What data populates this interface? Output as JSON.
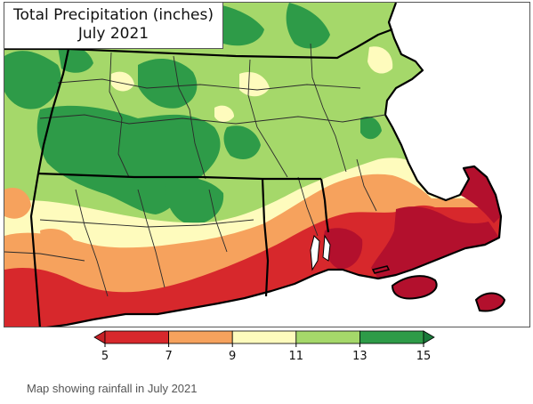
{
  "title": {
    "line1": "Total Precipitation (inches)",
    "line2": "July 2021"
  },
  "legend": {
    "ticks": [
      "5",
      "7",
      "9",
      "11",
      "13",
      "15"
    ],
    "bins": [
      {
        "from": 5,
        "to": 7,
        "color": "#d7282c"
      },
      {
        "from": 7,
        "to": 9,
        "color": "#f6a25d"
      },
      {
        "from": 9,
        "to": 11,
        "color": "#fefbbd"
      },
      {
        "from": 11,
        "to": 13,
        "color": "#a5d86a"
      },
      {
        "from": 13,
        "to": 15,
        "color": "#2e9b48"
      }
    ],
    "low_arrow_color": "#c72027",
    "high_arrow_color": "#1a7a3a"
  },
  "caption": "Map showing rainfall in July 2021",
  "colors": {
    "ocean": "#ffffff",
    "deep_red": "#b3102d",
    "state_border": "#000000",
    "county_border": "#2b2b2b"
  }
}
